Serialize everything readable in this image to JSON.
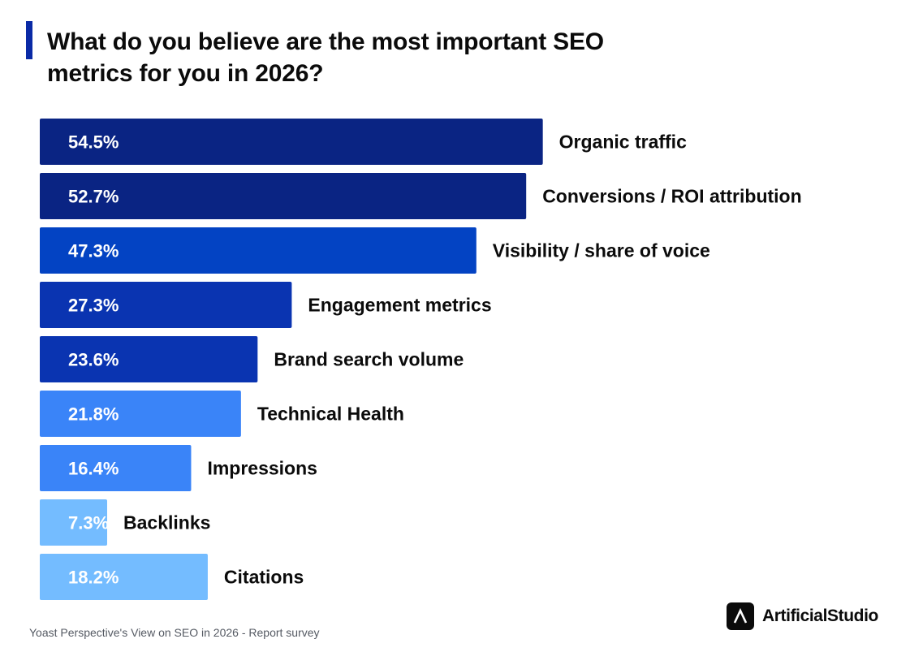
{
  "title": "What do you believe are the most important SEO metrics for you in 2026?",
  "footer": "Yoast Perspective's View on SEO in 2026 - Report survey",
  "brand": {
    "name": "ArtificialStudio",
    "logo_icon": "chevron-up-icon"
  },
  "colors": {
    "accent": "#0a2aa6",
    "dark_navy": "#0a2483",
    "royal_blue": "#0343c3",
    "medium_blue": "#0a34b1",
    "bright_blue": "#3a84f8",
    "light_blue": "#74bcff",
    "text": "#0b0b0b"
  },
  "chart_data": {
    "type": "bar",
    "orientation": "horizontal",
    "categories": [
      "Organic traffic",
      "Conversions / ROI attribution",
      "Visibility / share of voice",
      "Engagement metrics",
      "Brand search volume",
      "Technical Health",
      "Impressions",
      "Backlinks",
      "Citations"
    ],
    "values": [
      54.5,
      52.7,
      47.3,
      27.3,
      23.6,
      21.8,
      16.4,
      7.3,
      18.2
    ],
    "value_labels": [
      "54.5%",
      "52.7%",
      "47.3%",
      "27.3%",
      "23.6%",
      "21.8%",
      "16.4%",
      "7.3%",
      "18.2%"
    ],
    "bar_colors": [
      "#0a2483",
      "#0a2483",
      "#0343c3",
      "#0a34b1",
      "#0a34b1",
      "#3a84f8",
      "#3a84f8",
      "#74bcff",
      "#74bcff"
    ],
    "xlim": [
      0,
      60
    ],
    "grid": false,
    "legend": "none",
    "title": "What do you believe are the most important SEO metrics for you in 2026?",
    "xlabel": "",
    "ylabel": ""
  }
}
